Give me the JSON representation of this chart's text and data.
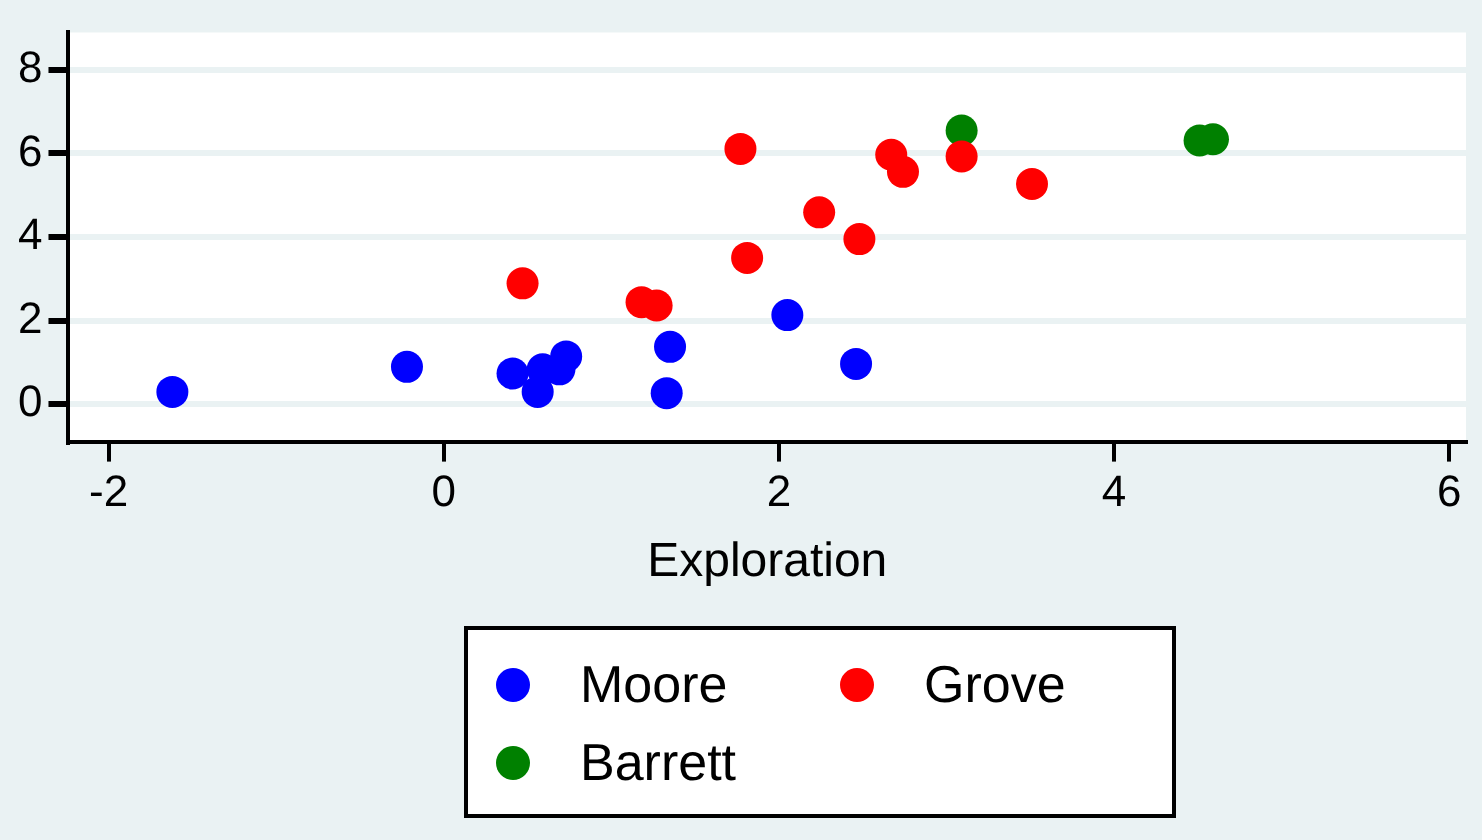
{
  "chart_data": {
    "type": "scatter",
    "xlabel": "Exploration",
    "xlim": [
      -2.24,
      6.1
    ],
    "ylim": [
      -0.9,
      8.9
    ],
    "xticks": [
      -2,
      0,
      2,
      4,
      6
    ],
    "yticks": [
      0,
      2,
      4,
      6,
      8
    ],
    "grid": "y",
    "legend": "bottom",
    "marker": "circle",
    "series": [
      {
        "name": "Moore",
        "color": "#0000ff",
        "x": [
          -1.62,
          -0.22,
          0.41,
          0.56,
          0.59,
          0.69,
          0.73,
          1.35,
          1.33,
          2.05,
          2.46
        ],
        "values": [
          0.29,
          0.89,
          0.73,
          0.29,
          0.83,
          0.83,
          1.14,
          1.37,
          0.26,
          2.13,
          0.96
        ]
      },
      {
        "name": "Grove",
        "color": "#ff0000",
        "x": [
          0.47,
          1.18,
          1.27,
          1.77,
          1.81,
          2.24,
          2.48,
          2.67,
          2.74,
          3.09,
          3.51
        ],
        "values": [
          2.89,
          2.44,
          2.36,
          6.11,
          3.5,
          4.59,
          3.95,
          5.97,
          5.56,
          5.93,
          5.27
        ]
      },
      {
        "name": "Barrett",
        "color": "#008000",
        "x": [
          3.09,
          4.51,
          4.59
        ],
        "values": [
          6.55,
          6.31,
          6.34
        ]
      }
    ]
  }
}
